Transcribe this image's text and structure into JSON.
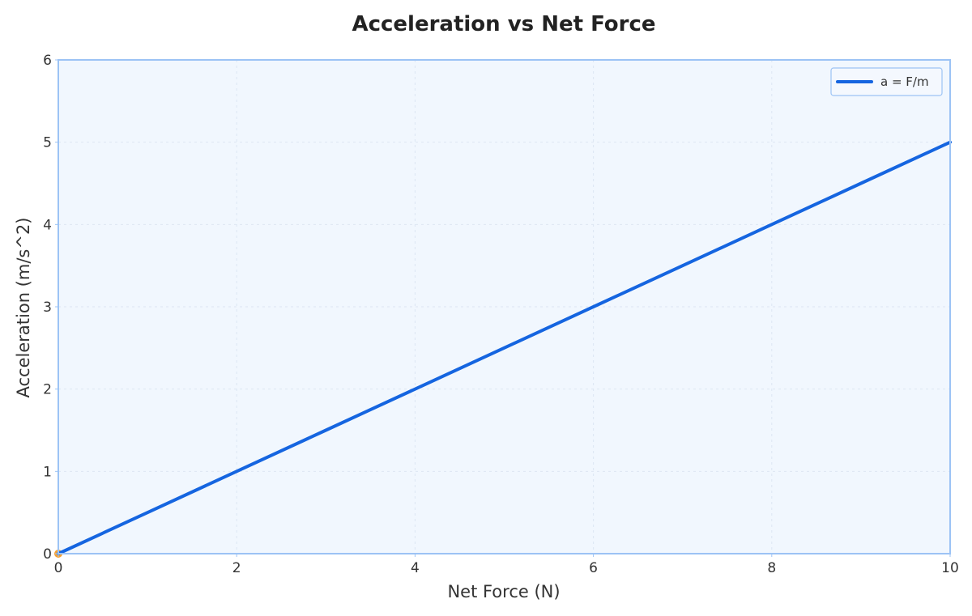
{
  "chart_data": {
    "type": "line",
    "title": "Acceleration vs Net Force",
    "xlabel": "Net Force (N)",
    "ylabel": "Acceleration (m/s^2)",
    "xlim": [
      0,
      10
    ],
    "ylim": [
      0,
      6
    ],
    "xticks": [
      0,
      2,
      4,
      6,
      8,
      10
    ],
    "yticks": [
      0,
      1,
      2,
      3,
      4,
      5,
      6
    ],
    "grid": true,
    "legend_position": "top-right",
    "series": [
      {
        "name": "a = F/m",
        "color": "#1565e0",
        "x": [
          0,
          1,
          2,
          3,
          4,
          5,
          6,
          7,
          8,
          9,
          10
        ],
        "y": [
          0,
          0.5,
          1,
          1.5,
          2,
          2.5,
          3,
          3.5,
          4,
          4.5,
          5
        ]
      }
    ],
    "marker": {
      "x": 0,
      "y": 0,
      "color": "#f5a031"
    },
    "colors": {
      "plot_background": "#f1f7fe",
      "frame": "#9cc3f5",
      "grid": "#dde6f3"
    }
  }
}
